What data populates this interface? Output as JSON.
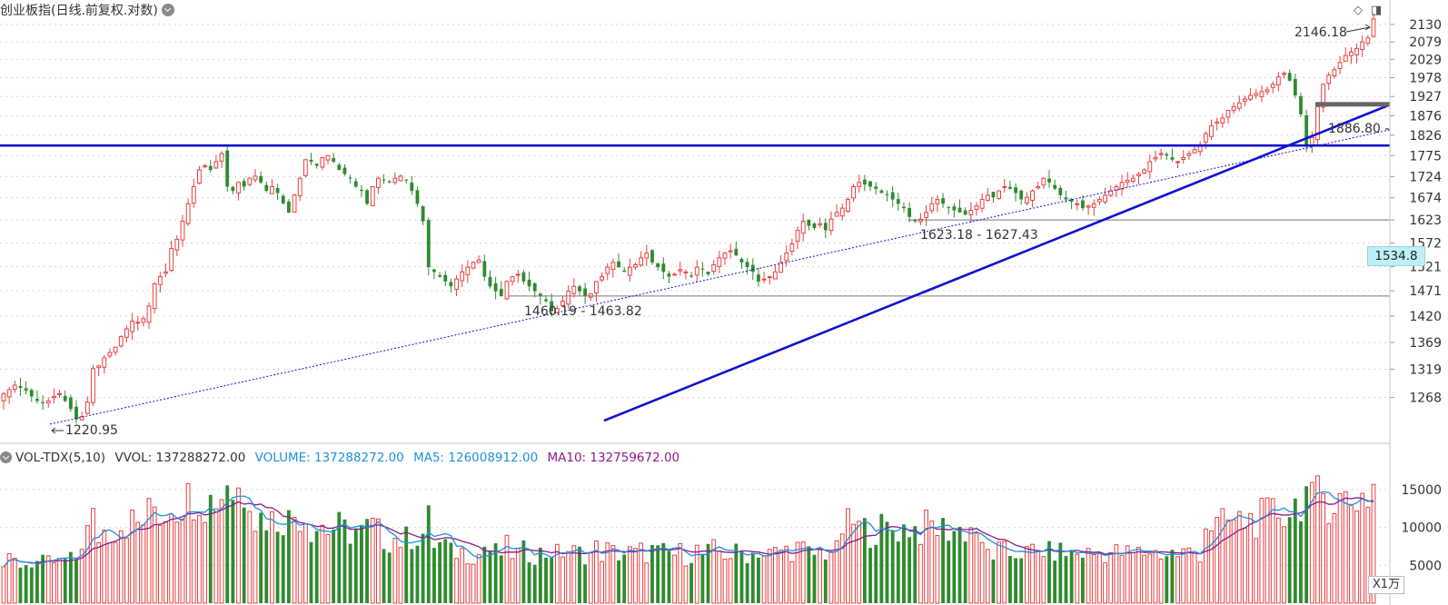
{
  "header": {
    "title": "创业板指(日线.前复权.对数)"
  },
  "volume_header": {
    "indicator": "VOL-TDX(5,10)",
    "vvol": "VVOL: 137288272.00",
    "volume": "VOLUME: 137288272.00",
    "ma5": "MA5: 126008912.00",
    "ma10": "MA10: 132759672.00"
  },
  "current_price": "1534.8",
  "volume_unit": "X1万",
  "colors": {
    "up": "#e84040",
    "down": "#2e8b2e",
    "trendline": "#1010d0",
    "ma5": "#1e90d8",
    "ma10": "#8b1a8b",
    "grid": "#d8d8d8",
    "support": "#777777"
  },
  "chart_data": [
    {
      "type": "candlestick",
      "title": "创业板指(日线.前复权.对数)",
      "y_scale": "log",
      "ylim": [
        1205,
        2165
      ],
      "y_ticks": [
        "2130",
        "2079",
        "2029",
        "1978",
        "1927",
        "1876",
        "1826",
        "1775",
        "1724",
        "1674",
        "1623",
        "1572",
        "1521",
        "1471",
        "1420",
        "1369",
        "1319",
        "1268"
      ],
      "grid": true,
      "annotations": [
        "2146.18",
        "1886.80 -",
        "1623.18 - 1627.43",
        "1460.19 - 1463.82",
        "1220.95"
      ],
      "support_levels": [
        1623.18,
        1460.19
      ],
      "horizontal_resistance": 1800,
      "low": 1220.95,
      "high": 2146.18,
      "close": [
        1275,
        1282,
        1290,
        1285,
        1280,
        1270,
        1262,
        1258,
        1262,
        1270,
        1275,
        1262,
        1248,
        1230,
        1235,
        1260,
        1320,
        1325,
        1340,
        1350,
        1360,
        1380,
        1395,
        1410,
        1408,
        1415,
        1440,
        1485,
        1500,
        1510,
        1560,
        1580,
        1620,
        1660,
        1700,
        1740,
        1750,
        1740,
        1760,
        1780,
        1700,
        1690,
        1710,
        1700,
        1720,
        1725,
        1710,
        1690,
        1700,
        1685,
        1660,
        1640,
        1680,
        1720,
        1765,
        1760,
        1750,
        1770,
        1775,
        1760,
        1740,
        1730,
        1720,
        1700,
        1690,
        1660,
        1700,
        1720,
        1715,
        1710,
        1720,
        1725,
        1715,
        1690,
        1660,
        1620,
        1520,
        1510,
        1500,
        1490,
        1480,
        1495,
        1510,
        1520,
        1530,
        1535,
        1500,
        1480,
        1470,
        1460,
        1490,
        1500,
        1505,
        1490,
        1480,
        1470,
        1460,
        1450,
        1430,
        1435,
        1450,
        1470,
        1480,
        1470,
        1460,
        1465,
        1490,
        1500,
        1520,
        1530,
        1520,
        1510,
        1520,
        1525,
        1540,
        1550,
        1530,
        1520,
        1510,
        1500,
        1505,
        1515,
        1510,
        1500,
        1520,
        1515,
        1505,
        1525,
        1540,
        1550,
        1555,
        1545,
        1530,
        1520,
        1510,
        1490,
        1495,
        1500,
        1510,
        1530,
        1550,
        1570,
        1600,
        1620,
        1610,
        1605,
        1615,
        1600,
        1625,
        1640,
        1650,
        1670,
        1700,
        1710,
        1705,
        1700,
        1695,
        1685,
        1680,
        1670,
        1660,
        1650,
        1630,
        1620,
        1625,
        1640,
        1660,
        1670,
        1660,
        1650,
        1645,
        1640,
        1635,
        1645,
        1655,
        1670,
        1680,
        1675,
        1690,
        1700,
        1695,
        1685,
        1670,
        1675,
        1690,
        1700,
        1720,
        1710,
        1695,
        1680,
        1670,
        1665,
        1660,
        1650,
        1655,
        1660,
        1670,
        1680,
        1690,
        1700,
        1710,
        1715,
        1720,
        1730,
        1740,
        1760,
        1770,
        1780,
        1775,
        1765,
        1760,
        1770,
        1780,
        1790,
        1800,
        1830,
        1850,
        1860,
        1870,
        1890,
        1900,
        1910,
        1920,
        1930,
        1935,
        1940,
        1945,
        1960,
        1980,
        1990,
        1970,
        1930,
        1880,
        1800,
        1820,
        1900,
        1960,
        1985,
        2000,
        2020,
        2040,
        2050,
        2060,
        2079,
        2090,
        2146.18
      ]
    },
    {
      "type": "bar",
      "title": "VOL-TDX(5,10)",
      "unit": "X1万",
      "ylim": [
        0,
        17500
      ],
      "y_ticks": [
        "15000",
        "10000",
        "5000"
      ],
      "series": [
        {
          "name": "VOLUME",
          "values": []
        },
        {
          "name": "MA5",
          "values": []
        },
        {
          "name": "MA10",
          "values": []
        }
      ]
    }
  ]
}
